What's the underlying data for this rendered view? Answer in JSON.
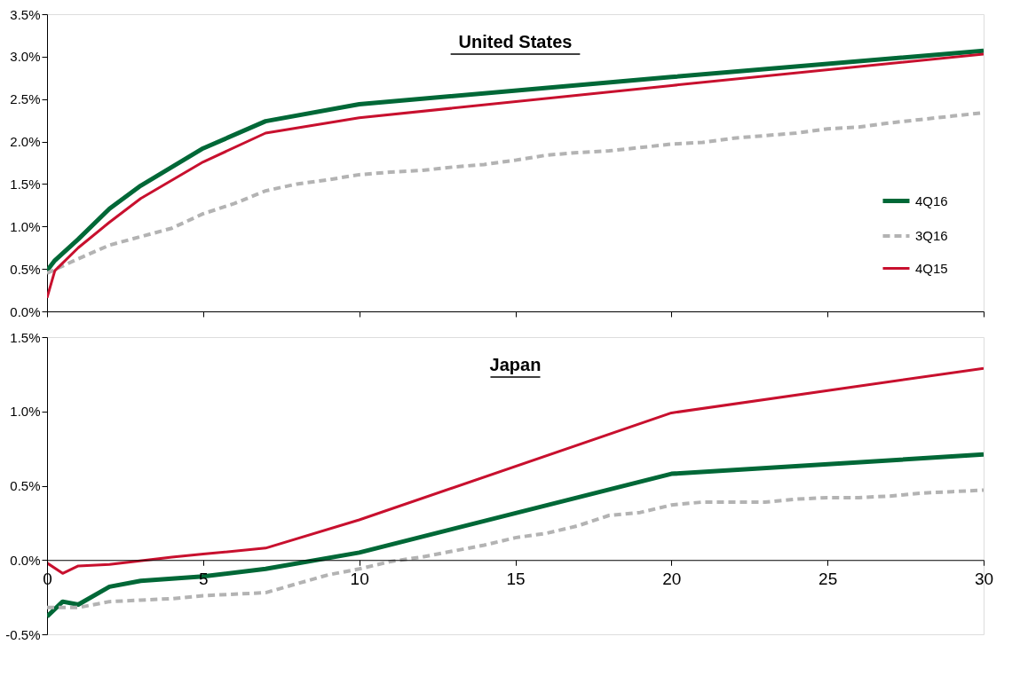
{
  "chart_data": [
    {
      "type": "line",
      "title": "United States",
      "xlim": [
        0,
        30
      ],
      "xticks": [
        0,
        5,
        10,
        15,
        20,
        25,
        30
      ],
      "ylim": [
        0,
        3.5
      ],
      "yticks": [
        {
          "value": 0,
          "label": "0.0%"
        },
        {
          "value": 0.5,
          "label": "0.5%"
        },
        {
          "value": 1,
          "label": "1.0%"
        },
        {
          "value": 1.5,
          "label": "1.5%"
        },
        {
          "value": 2,
          "label": "2.0%"
        },
        {
          "value": 2.5,
          "label": "2.5%"
        },
        {
          "value": 3,
          "label": "3.0%"
        },
        {
          "value": 3.5,
          "label": "3.5%"
        }
      ],
      "tick_labels": "y",
      "grid": false,
      "legend": "right",
      "marker": "none",
      "series": [
        {
          "name": "4Q16",
          "color": "#006837",
          "line_style": "solid",
          "x": [
            0,
            0.25,
            1,
            2,
            3,
            5,
            7,
            10,
            20,
            30
          ],
          "values": [
            0.48,
            0.6,
            0.85,
            1.21,
            1.48,
            1.92,
            2.24,
            2.44,
            2.76,
            3.07
          ]
        },
        {
          "name": "3Q16",
          "color": "#b3b3b3",
          "line_style": "dashed",
          "x": [
            0,
            1,
            2,
            3,
            4,
            5,
            6,
            7,
            8,
            9,
            10,
            11,
            12,
            13,
            14,
            15,
            16,
            17,
            18,
            19,
            20,
            21,
            22,
            23,
            24,
            25,
            26,
            27,
            28,
            29,
            30
          ],
          "values": [
            0.45,
            0.62,
            0.78,
            0.88,
            0.98,
            1.15,
            1.27,
            1.42,
            1.5,
            1.55,
            1.61,
            1.64,
            1.66,
            1.7,
            1.73,
            1.78,
            1.84,
            1.87,
            1.89,
            1.93,
            1.97,
            1.99,
            2.04,
            2.07,
            2.1,
            2.15,
            2.17,
            2.22,
            2.26,
            2.3,
            2.34
          ]
        },
        {
          "name": "4Q15",
          "color": "#c8102e",
          "line_style": "solid",
          "x": [
            0,
            0.25,
            1,
            2,
            3,
            5,
            7,
            10,
            20,
            30
          ],
          "values": [
            0.16,
            0.48,
            0.75,
            1.05,
            1.33,
            1.76,
            2.1,
            2.28,
            2.66,
            3.03
          ]
        }
      ]
    },
    {
      "type": "line",
      "title": "Japan",
      "xlim": [
        0,
        30
      ],
      "xticks": [
        0,
        5,
        10,
        15,
        20,
        25,
        30
      ],
      "ylim": [
        -0.5,
        1.5
      ],
      "yticks": [
        {
          "value": -0.5,
          "label": "-0.5%"
        },
        {
          "value": 0,
          "label": "0.0%"
        },
        {
          "value": 0.5,
          "label": "0.5%"
        },
        {
          "value": 1,
          "label": "1.0%"
        },
        {
          "value": 1.5,
          "label": "1.5%"
        }
      ],
      "grid": false,
      "legend": false,
      "marker": "none",
      "series": [
        {
          "color": "#006837",
          "line_style": "solid",
          "x": [
            0,
            0.5,
            1,
            2,
            3,
            5,
            7,
            10,
            20,
            30
          ],
          "values": [
            -0.38,
            -0.28,
            -0.3,
            -0.18,
            -0.14,
            -0.11,
            -0.06,
            0.05,
            0.58,
            0.71
          ]
        },
        {
          "color": "#b3b3b3",
          "line_style": "dashed",
          "x": [
            0,
            1,
            2,
            3,
            4,
            5,
            6,
            7,
            8,
            9,
            10,
            11,
            12,
            13,
            14,
            15,
            16,
            17,
            18,
            19,
            20,
            21,
            22,
            23,
            24,
            25,
            26,
            27,
            28,
            29,
            30
          ],
          "values": [
            -0.32,
            -0.32,
            -0.28,
            -0.27,
            -0.26,
            -0.24,
            -0.23,
            -0.22,
            -0.16,
            -0.1,
            -0.06,
            -0.01,
            0.02,
            0.06,
            0.1,
            0.15,
            0.18,
            0.23,
            0.3,
            0.32,
            0.37,
            0.39,
            0.39,
            0.39,
            0.41,
            0.42,
            0.42,
            0.43,
            0.45,
            0.46,
            0.47
          ]
        },
        {
          "color": "#c8102e",
          "line_style": "solid",
          "x": [
            0,
            0.5,
            1,
            2,
            4,
            5,
            7,
            10,
            20,
            30
          ],
          "values": [
            -0.02,
            -0.09,
            -0.04,
            -0.03,
            0.02,
            0.04,
            0.08,
            0.27,
            0.99,
            1.29
          ]
        }
      ]
    }
  ]
}
